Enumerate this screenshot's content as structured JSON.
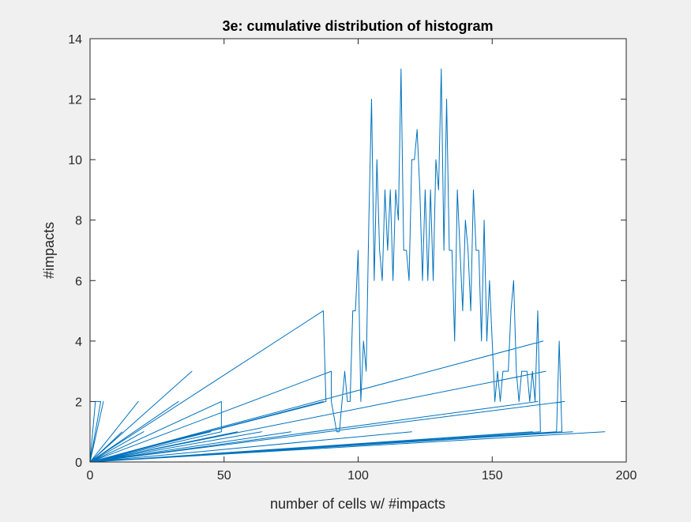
{
  "chart_data": {
    "type": "line",
    "title": "3e: cumulative distribution of histogram",
    "xlabel": "number of cells w/ #impacts",
    "ylabel": "#impacts",
    "xlim": [
      0,
      200
    ],
    "ylim": [
      0,
      14
    ],
    "xticks": [
      "0",
      "50",
      "100",
      "150",
      "200"
    ],
    "yticks": [
      "0",
      "2",
      "4",
      "6",
      "8",
      "10",
      "12",
      "14"
    ],
    "grid": false,
    "line_color": "#0072bd",
    "series": [
      {
        "values": [
          [
            0,
            0
          ],
          [
            2,
            2
          ],
          [
            4,
            2
          ],
          [
            0,
            0
          ],
          [
            5,
            2
          ],
          [
            0,
            0
          ],
          [
            18,
            2
          ],
          [
            0,
            0
          ],
          [
            38,
            3
          ],
          [
            0,
            0
          ],
          [
            33,
            2
          ],
          [
            0,
            0
          ],
          [
            49,
            2
          ],
          [
            49,
            1
          ],
          [
            0,
            0
          ],
          [
            64,
            1
          ],
          [
            0,
            0
          ],
          [
            87,
            5
          ],
          [
            88,
            2
          ],
          [
            0,
            0
          ],
          [
            90,
            3
          ],
          [
            90,
            2
          ],
          [
            92,
            1
          ],
          [
            93,
            1
          ],
          [
            95,
            3
          ],
          [
            96,
            2
          ],
          [
            97,
            2
          ],
          [
            98,
            5
          ],
          [
            99,
            5
          ],
          [
            100,
            7
          ],
          [
            101,
            2
          ],
          [
            102,
            4
          ],
          [
            103,
            3
          ],
          [
            104,
            8
          ],
          [
            105,
            12
          ],
          [
            106,
            6
          ],
          [
            107,
            10
          ],
          [
            108,
            7
          ],
          [
            109,
            6
          ],
          [
            110,
            9
          ],
          [
            111,
            7
          ],
          [
            112,
            9
          ],
          [
            113,
            6
          ],
          [
            114,
            9
          ],
          [
            115,
            8
          ],
          [
            116,
            13
          ],
          [
            117,
            7
          ],
          [
            118,
            7
          ],
          [
            119,
            6
          ],
          [
            120,
            10
          ],
          [
            121,
            10
          ],
          [
            122,
            11
          ],
          [
            123,
            9
          ],
          [
            124,
            6
          ],
          [
            125,
            9
          ],
          [
            126,
            6
          ],
          [
            127,
            9
          ],
          [
            128,
            6
          ],
          [
            129,
            10
          ],
          [
            130,
            9
          ],
          [
            131,
            13
          ],
          [
            132,
            7
          ],
          [
            133,
            12
          ],
          [
            134,
            7
          ],
          [
            135,
            7
          ],
          [
            136,
            4
          ],
          [
            137,
            9
          ],
          [
            138,
            7
          ],
          [
            139,
            5
          ],
          [
            140,
            8
          ],
          [
            141,
            7
          ],
          [
            142,
            5
          ],
          [
            143,
            9
          ],
          [
            144,
            7
          ],
          [
            145,
            7
          ],
          [
            146,
            4
          ],
          [
            147,
            8
          ],
          [
            148,
            4
          ],
          [
            149,
            6
          ],
          [
            150,
            4
          ],
          [
            151,
            2
          ],
          [
            152,
            3
          ],
          [
            153,
            2
          ],
          [
            154,
            3
          ],
          [
            155,
            3
          ],
          [
            156,
            3
          ],
          [
            157,
            5
          ],
          [
            158,
            6
          ],
          [
            159,
            3
          ],
          [
            160,
            2
          ],
          [
            161,
            3
          ],
          [
            162,
            3
          ],
          [
            163,
            3
          ],
          [
            164,
            2
          ],
          [
            165,
            3
          ],
          [
            166,
            2
          ],
          [
            167,
            5
          ],
          [
            168,
            1
          ],
          [
            0,
            0
          ],
          [
            169,
            4
          ],
          [
            0,
            0
          ],
          [
            170,
            3
          ],
          [
            0,
            0
          ],
          [
            87,
            2
          ],
          [
            0,
            0
          ],
          [
            167,
            2
          ],
          [
            0,
            0
          ],
          [
            177,
            2
          ],
          [
            0,
            0
          ],
          [
            174,
            1
          ],
          [
            175,
            4
          ],
          [
            176,
            1
          ],
          [
            0,
            0
          ],
          [
            192,
            1
          ],
          [
            0,
            0
          ],
          [
            180,
            1
          ],
          [
            0,
            0
          ],
          [
            165,
            1
          ],
          [
            0,
            0
          ],
          [
            120,
            1
          ],
          [
            0,
            0
          ],
          [
            75,
            1
          ],
          [
            0,
            0
          ],
          [
            55,
            1
          ],
          [
            0,
            0
          ],
          [
            45,
            1
          ],
          [
            0,
            0
          ],
          [
            30,
            1
          ],
          [
            0,
            0
          ],
          [
            20,
            1
          ],
          [
            0,
            0
          ],
          [
            12,
            1
          ]
        ]
      }
    ]
  }
}
